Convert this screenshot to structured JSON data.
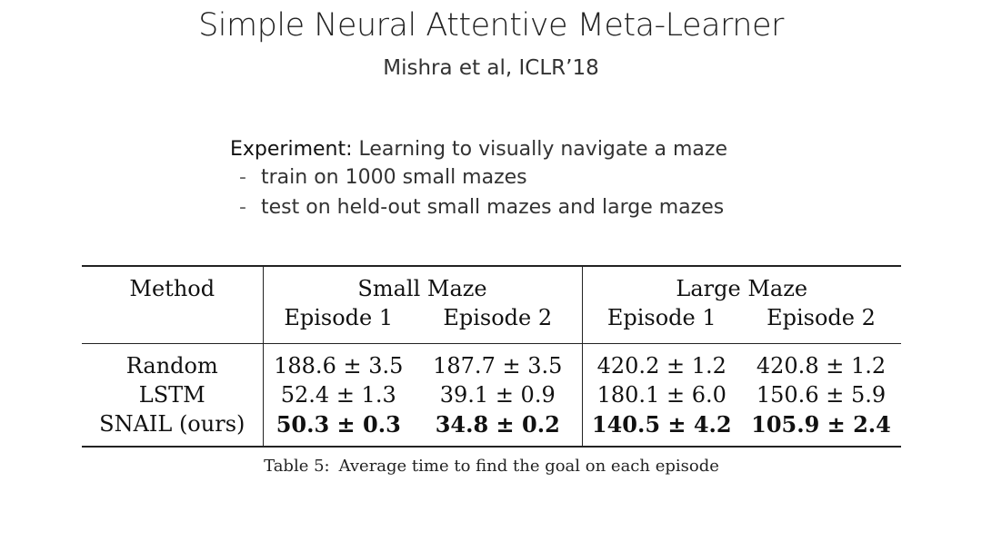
{
  "slide": {
    "title": "Simple Neural Attentive Meta-Learner",
    "subtitle": "Mishra et al, ICLR’18"
  },
  "experiment": {
    "label": "Experiment:",
    "description": "Learning to visually navigate a maze",
    "bullets": [
      "train on 1000 small mazes",
      "test on held-out small mazes and large mazes"
    ]
  },
  "table": {
    "method_header": "Method",
    "groups": [
      "Small Maze",
      "Large Maze"
    ],
    "episode_headers": [
      "Episode 1",
      "Episode 2",
      "Episode 1",
      "Episode 2"
    ],
    "rows": [
      {
        "method": "Random",
        "values": [
          "188.6 ± 3.5",
          "187.7 ± 3.5",
          "420.2 ± 1.2",
          "420.8 ± 1.2"
        ]
      },
      {
        "method": "LSTM",
        "values": [
          "52.4 ± 1.3",
          "39.1 ± 0.9",
          "180.1 ± 6.0",
          "150.6 ± 5.9"
        ]
      },
      {
        "method": "SNAIL (ours)",
        "values": [
          "50.3 ± 0.3",
          "34.8 ± 0.2",
          "140.5 ± 4.2",
          "105.9 ± 2.4"
        ]
      }
    ],
    "caption_tag": "Table 5:",
    "caption_text": "Average time to find the goal on each episode"
  }
}
